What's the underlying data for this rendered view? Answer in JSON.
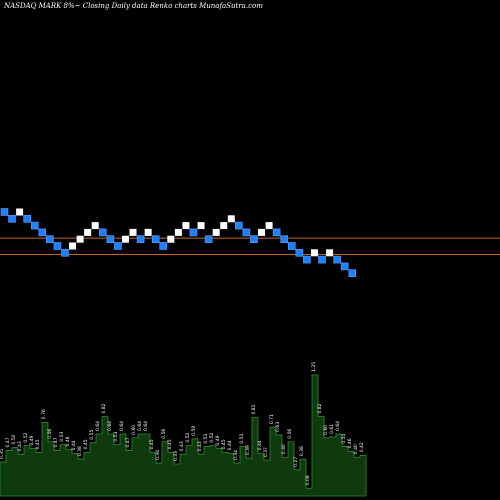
{
  "title": "NASDAQ MARK 8%~  Closing Daily data  Renko  charts MunafaSutra.com",
  "colors": {
    "background": "#000000",
    "brick_up": "#ffffff",
    "brick_down": "#1e7fff",
    "brick_down_border": "#5aa0ff",
    "level_line": "#c0661f",
    "volume_fill": "#0e3a0e",
    "volume_stroke": "#2f8a2f",
    "volume_text": "#ffffff"
  },
  "chart_data": [
    {
      "type": "renko",
      "brick_size": 1,
      "bricks": [
        {
          "level": 20,
          "dir": "down"
        },
        {
          "level": 19,
          "dir": "down"
        },
        {
          "level": 20,
          "dir": "up"
        },
        {
          "level": 19,
          "dir": "down"
        },
        {
          "level": 18,
          "dir": "down"
        },
        {
          "level": 17,
          "dir": "down"
        },
        {
          "level": 16,
          "dir": "down"
        },
        {
          "level": 15,
          "dir": "down"
        },
        {
          "level": 14,
          "dir": "down"
        },
        {
          "level": 15,
          "dir": "up"
        },
        {
          "level": 16,
          "dir": "up"
        },
        {
          "level": 17,
          "dir": "up"
        },
        {
          "level": 18,
          "dir": "up"
        },
        {
          "level": 17,
          "dir": "down"
        },
        {
          "level": 16,
          "dir": "down"
        },
        {
          "level": 15,
          "dir": "down"
        },
        {
          "level": 16,
          "dir": "up"
        },
        {
          "level": 17,
          "dir": "up"
        },
        {
          "level": 16,
          "dir": "down"
        },
        {
          "level": 17,
          "dir": "up"
        },
        {
          "level": 16,
          "dir": "down"
        },
        {
          "level": 15,
          "dir": "down"
        },
        {
          "level": 16,
          "dir": "up"
        },
        {
          "level": 17,
          "dir": "up"
        },
        {
          "level": 18,
          "dir": "up"
        },
        {
          "level": 17,
          "dir": "down"
        },
        {
          "level": 18,
          "dir": "up"
        },
        {
          "level": 16,
          "dir": "down"
        },
        {
          "level": 17,
          "dir": "up"
        },
        {
          "level": 18,
          "dir": "up"
        },
        {
          "level": 19,
          "dir": "up"
        },
        {
          "level": 18,
          "dir": "down"
        },
        {
          "level": 17,
          "dir": "down"
        },
        {
          "level": 16,
          "dir": "down"
        },
        {
          "level": 17,
          "dir": "up"
        },
        {
          "level": 18,
          "dir": "up"
        },
        {
          "level": 17,
          "dir": "down"
        },
        {
          "level": 16,
          "dir": "down"
        },
        {
          "level": 15,
          "dir": "down"
        },
        {
          "level": 14,
          "dir": "down"
        },
        {
          "level": 13,
          "dir": "down"
        },
        {
          "level": 14,
          "dir": "up"
        },
        {
          "level": 13,
          "dir": "down"
        },
        {
          "level": 14,
          "dir": "up"
        },
        {
          "level": 13,
          "dir": "down"
        },
        {
          "level": 12,
          "dir": "down"
        },
        {
          "level": 11,
          "dir": "down"
        }
      ],
      "level_lines": [
        16.15,
        13.75
      ],
      "volume": {
        "labels": [
          "0.35",
          "0.47",
          "0.50",
          "0.43",
          "0.52",
          "0.49",
          "0.45",
          "0.76",
          "0.56",
          "0.47",
          "0.53",
          "0.48",
          "0.44",
          "0.38",
          "0.45",
          "0.55",
          "0.64",
          "0.82",
          "0.64",
          "0.53",
          "0.64",
          "0.47",
          "0.60",
          "0.64",
          "0.64",
          "0.45",
          "0.34",
          "0.56",
          "0.45",
          "0.33",
          "0.43",
          "0.52",
          "0.59",
          "0.43",
          "0.51",
          "0.52",
          "0.49",
          "0.45",
          "0.44",
          "0.34",
          "0.51",
          "0.39",
          "0.81",
          "0.44",
          "0.37",
          "0.71",
          "0.63",
          "0.40",
          "0.56",
          "0.27",
          "0.38",
          "0.08",
          "1.25",
          "0.82",
          "0.60",
          "0.61",
          "0.64",
          "0.51",
          "0.46",
          "0.40",
          "0.42"
        ],
        "values": [
          0.35,
          0.47,
          0.5,
          0.43,
          0.52,
          0.49,
          0.45,
          0.76,
          0.56,
          0.47,
          0.53,
          0.48,
          0.44,
          0.38,
          0.45,
          0.55,
          0.64,
          0.82,
          0.64,
          0.53,
          0.64,
          0.47,
          0.6,
          0.64,
          0.64,
          0.45,
          0.34,
          0.56,
          0.45,
          0.33,
          0.43,
          0.52,
          0.59,
          0.43,
          0.51,
          0.52,
          0.49,
          0.45,
          0.44,
          0.34,
          0.51,
          0.39,
          0.81,
          0.44,
          0.37,
          0.71,
          0.63,
          0.4,
          0.56,
          0.27,
          0.38,
          0.08,
          1.25,
          0.82,
          0.6,
          0.61,
          0.64,
          0.51,
          0.46,
          0.4,
          0.42
        ],
        "ylim": [
          0,
          1.3
        ]
      }
    }
  ]
}
